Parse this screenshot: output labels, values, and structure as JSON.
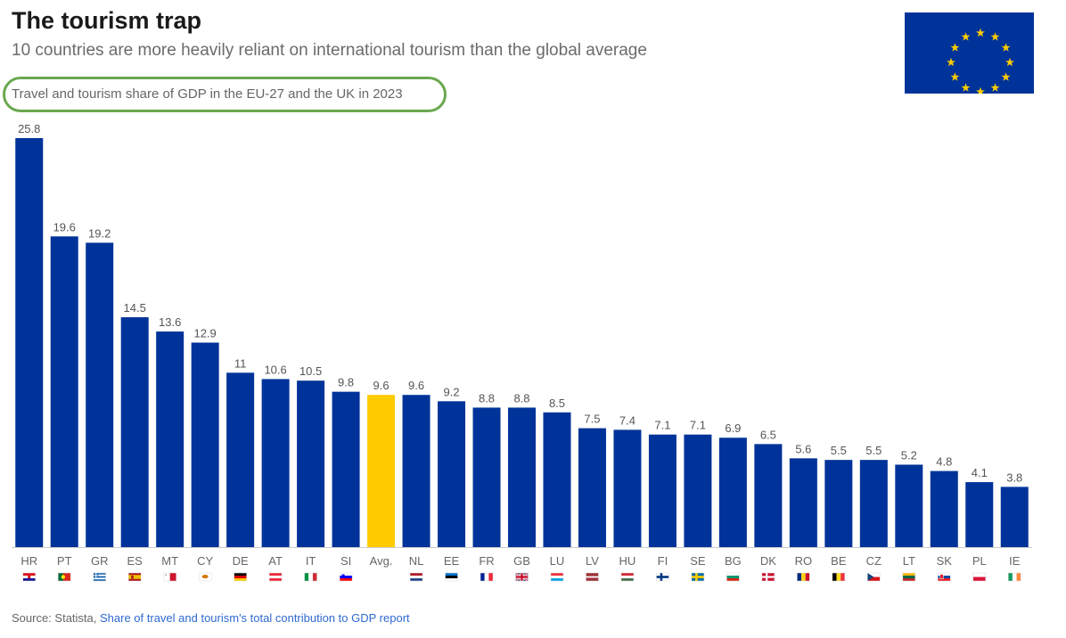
{
  "header": {
    "title": "The tourism trap",
    "subtitle": "10 countries are more heavily reliant on international tourism than the global average"
  },
  "emblem": {
    "name": "eu-flag",
    "background": "#003399",
    "star_color": "#FFCC00",
    "star_count": 12
  },
  "colors": {
    "bar": "#003399",
    "highlight_bar": "#FFCC00",
    "baseline": "#cccccc",
    "value_label": "#555555",
    "tick_label": "#666666"
  },
  "chart_data": {
    "type": "bar",
    "title": "Travel and tourism share of GDP in the EU-27 and the UK in 2023",
    "xlabel": "",
    "ylabel": "",
    "ylim": [
      0,
      25.8
    ],
    "grid": false,
    "categories": [
      "HR",
      "PT",
      "GR",
      "ES",
      "MT",
      "CY",
      "DE",
      "AT",
      "IT",
      "SI",
      "Avg.",
      "NL",
      "EE",
      "FR",
      "GB",
      "LU",
      "LV",
      "HU",
      "FI",
      "SE",
      "BG",
      "DK",
      "RO",
      "BE",
      "CZ",
      "LT",
      "SK",
      "PL",
      "IE"
    ],
    "values": [
      25.8,
      19.6,
      19.2,
      14.5,
      13.6,
      12.9,
      11,
      10.6,
      10.5,
      9.8,
      9.6,
      9.6,
      9.2,
      8.8,
      8.8,
      8.5,
      7.5,
      7.4,
      7.1,
      7.1,
      6.9,
      6.5,
      5.6,
      5.5,
      5.5,
      5.2,
      4.8,
      4.1,
      3.8
    ],
    "highlight_category": "Avg.",
    "flags": [
      "flag-hr",
      "flag-pt",
      "flag-gr",
      "flag-es",
      "flag-mt",
      "flag-cy",
      "flag-de",
      "flag-at",
      "flag-it",
      "flag-si",
      "",
      "flag-nl",
      "flag-ee",
      "flag-fr",
      "flag-gb",
      "flag-lu",
      "flag-lv",
      "flag-hu",
      "flag-fi",
      "flag-se",
      "flag-bg",
      "flag-dk",
      "flag-ro",
      "flag-be",
      "flag-cz",
      "flag-lt",
      "flag-sk",
      "flag-pl",
      "flag-ie"
    ]
  },
  "footer": {
    "source_prefix": "Source: Statista, ",
    "source_link": "Share of travel and tourism's total contribution to GDP report"
  }
}
